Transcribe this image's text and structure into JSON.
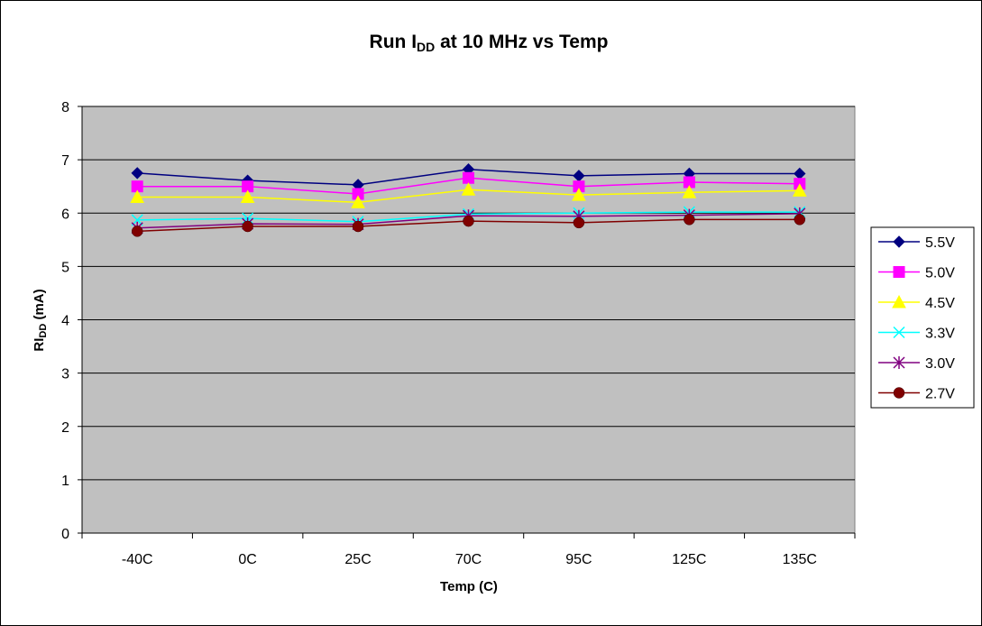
{
  "chart_data": {
    "type": "line",
    "title": {
      "main": "Run I",
      "sub": "DD",
      "rest": " at 10 MHz vs Temp"
    },
    "xlabel": "Temp (C)",
    "ylabel": {
      "main": "RI",
      "sub": "DD",
      "rest": " (mA)"
    },
    "categories": [
      "-40C",
      "0C",
      "25C",
      "70C",
      "95C",
      "125C",
      "135C"
    ],
    "ylim": [
      0,
      8
    ],
    "yticks": [
      "0",
      "1",
      "2",
      "3",
      "4",
      "5",
      "6",
      "7",
      "8"
    ],
    "grid": true,
    "legend_position": "right",
    "plot_background": "#c0c0c0",
    "series": [
      {
        "name": "5.5V",
        "color": "#000080",
        "marker": "diamond",
        "values": [
          6.75,
          6.61,
          6.53,
          6.82,
          6.7,
          6.74,
          6.74
        ]
      },
      {
        "name": "5.0V",
        "color": "#ff00ff",
        "marker": "square",
        "values": [
          6.5,
          6.5,
          6.36,
          6.66,
          6.5,
          6.58,
          6.55
        ]
      },
      {
        "name": "4.5V",
        "color": "#ffff00",
        "marker": "triangle",
        "values": [
          6.3,
          6.3,
          6.2,
          6.44,
          6.34,
          6.39,
          6.42
        ]
      },
      {
        "name": "3.3V",
        "color": "#00ffff",
        "marker": "x",
        "values": [
          5.87,
          5.9,
          5.84,
          5.98,
          6.0,
          6.02,
          6.02
        ]
      },
      {
        "name": "3.0V",
        "color": "#800080",
        "marker": "star",
        "values": [
          5.72,
          5.8,
          5.79,
          5.95,
          5.94,
          5.96,
          5.99
        ]
      },
      {
        "name": "2.7V",
        "color": "#800000",
        "marker": "circle",
        "values": [
          5.66,
          5.75,
          5.75,
          5.85,
          5.82,
          5.88,
          5.88
        ]
      }
    ]
  }
}
